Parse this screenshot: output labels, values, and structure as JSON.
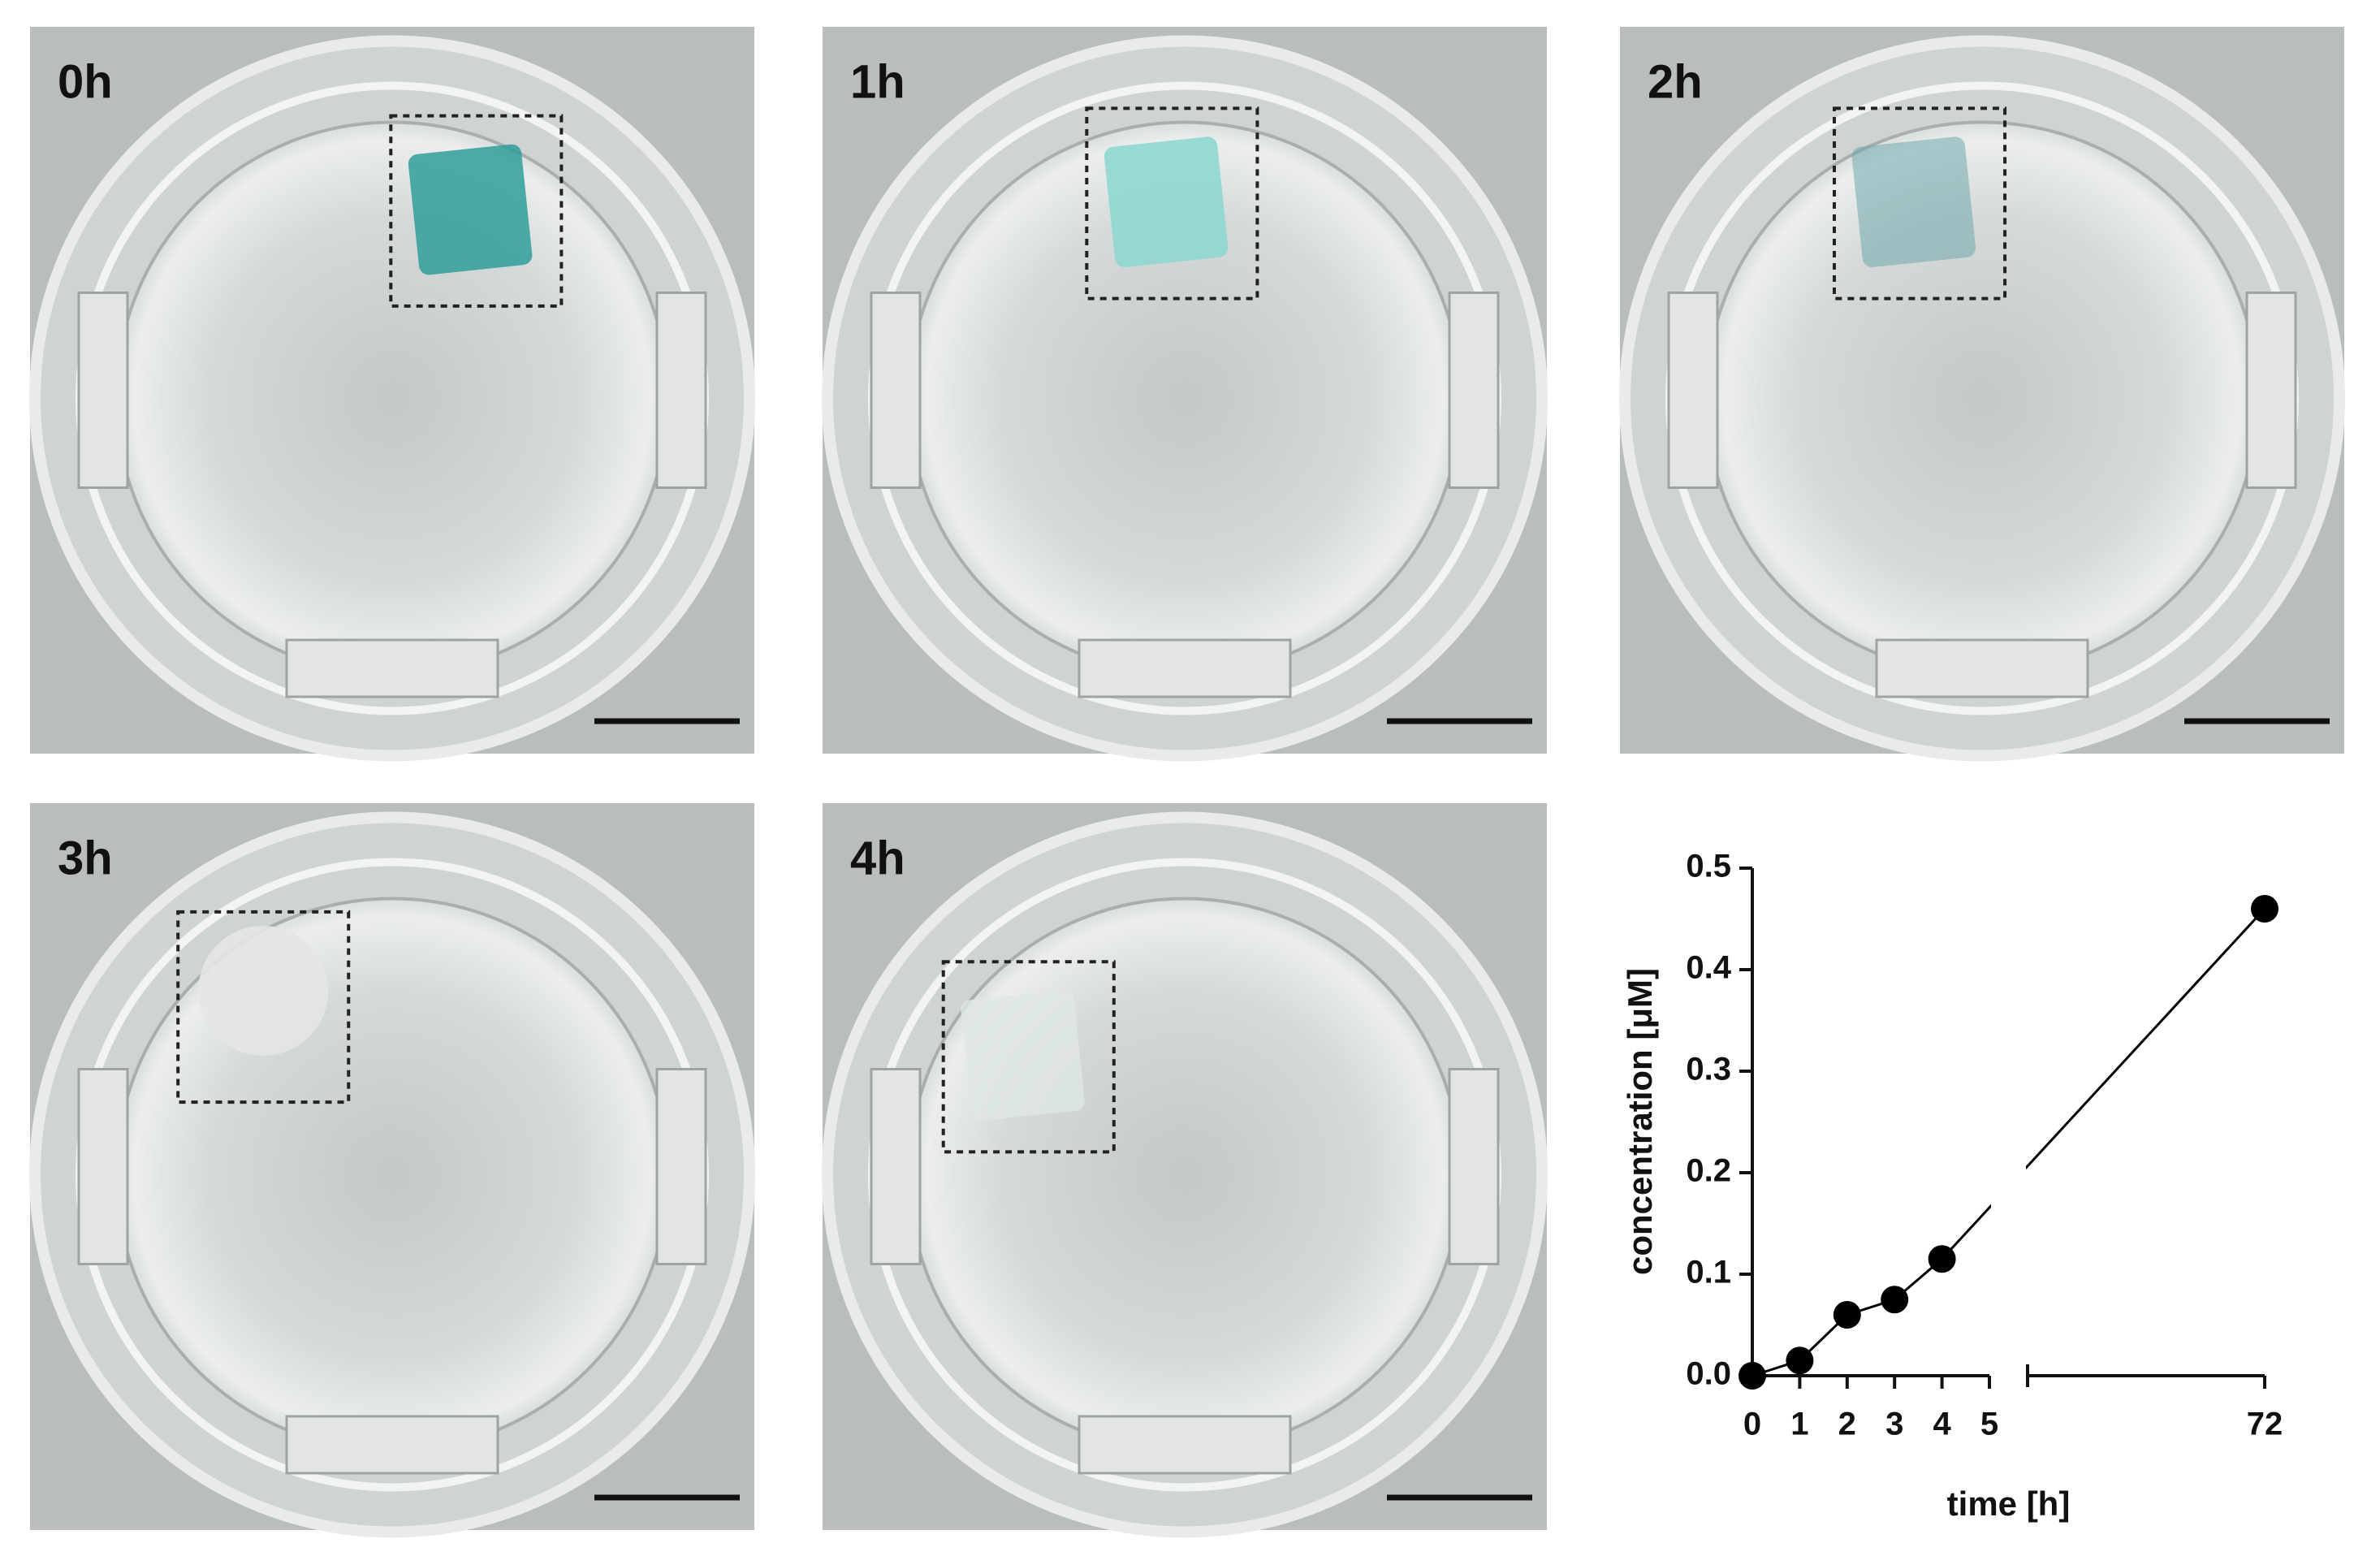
{
  "panels": [
    {
      "label": "0h"
    },
    {
      "label": "1h"
    },
    {
      "label": "2h"
    },
    {
      "label": "3h"
    },
    {
      "label": "4h"
    }
  ],
  "chart_data": {
    "type": "line",
    "x": [
      0,
      1,
      2,
      3,
      4,
      72
    ],
    "values": [
      0,
      0.015,
      0.06,
      0.075,
      0.115,
      0.46
    ],
    "color": "#000000",
    "xlabel": "time [h]",
    "ylabel": "concentration [μM]",
    "xlim": [
      0,
      72
    ],
    "x_break": true,
    "xticks": [
      0,
      1,
      2,
      3,
      4,
      5,
      72
    ],
    "ylim": [
      0,
      0.5
    ],
    "yticks": [
      {
        "value": 0,
        "label": "0.0"
      },
      0.1,
      0.2,
      0.3,
      0.4,
      0.5
    ]
  }
}
